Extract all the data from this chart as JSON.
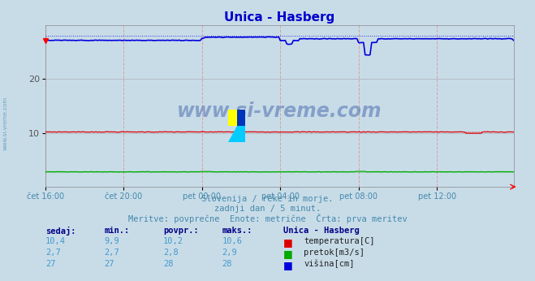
{
  "title": "Unica - Hasberg",
  "title_color": "#0000cc",
  "bg_color": "#c8dce8",
  "plot_bg_color": "#c8dce8",
  "xlim": [
    0,
    287
  ],
  "ylim": [
    0,
    30
  ],
  "yticks": [
    10,
    20
  ],
  "xtick_labels": [
    "čet 16:00",
    "čet 20:00",
    "pet 00:00",
    "pet 04:00",
    "pet 08:00",
    "pet 12:00"
  ],
  "xtick_positions": [
    0,
    48,
    96,
    144,
    192,
    240
  ],
  "grid_color_v": "#dd9999",
  "grid_color_h": "#b0b8c0",
  "temp_color": "#dd0000",
  "flow_color": "#00aa00",
  "height_color": "#0000dd",
  "subtitle1": "Slovenija / reke in morje.",
  "subtitle2": "zadnji dan / 5 minut.",
  "subtitle3": "Meritve: povprečne  Enote: metrične  Črta: prva meritev",
  "subtitle_color": "#4488aa",
  "watermark": "www.si-vreme.com",
  "watermark_color": "#4466aa",
  "legend_title": "Unica - Hasberg",
  "table_header_color": "#000088",
  "table_value_color": "#4499cc",
  "left_margin_text": "www.si-vreme.com",
  "logo_y_yellow": "#ffff00",
  "logo_c_cyan": "#00ccff",
  "logo_b_blue": "#0033bb"
}
